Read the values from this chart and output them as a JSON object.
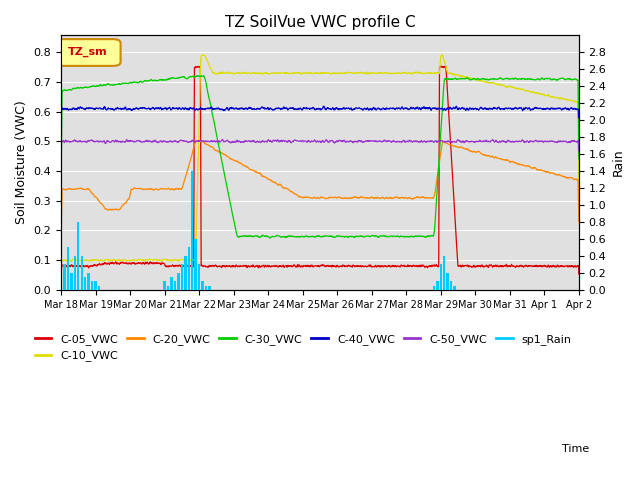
{
  "title": "TZ SoilVue VWC profile C",
  "xlabel": "Time",
  "ylabel_left": "Soil Moisture (VWC)",
  "ylabel_right": "Rain",
  "ylim_left": [
    0.0,
    0.857
  ],
  "ylim_right": [
    0.0,
    3.0
  ],
  "yticks_left": [
    0.0,
    0.1,
    0.2,
    0.3,
    0.4,
    0.5,
    0.6,
    0.7,
    0.8
  ],
  "yticks_right": [
    0.0,
    0.2,
    0.4,
    0.6,
    0.8,
    1.0,
    1.2,
    1.4,
    1.6,
    1.8,
    2.0,
    2.2,
    2.4,
    2.6,
    2.8
  ],
  "bg_color": "#e0e0e0",
  "legend_box_color": "#ffff99",
  "legend_box_edge": "#cc8800",
  "series_colors": {
    "C-05_VWC": "#dd0000",
    "C-10_VWC": "#dddd00",
    "C-20_VWC": "#ff8800",
    "C-30_VWC": "#00cc00",
    "C-40_VWC": "#0000cc",
    "C-50_VWC": "#9933cc",
    "sp1_Rain": "#00ccff"
  },
  "n_points": 2000,
  "date_start_day": 18,
  "date_end_day": 33,
  "x_tick_positions": [
    18,
    19,
    20,
    21,
    22,
    23,
    24,
    25,
    26,
    27,
    28,
    29,
    30,
    31,
    32,
    33
  ],
  "x_tick_labels": [
    "Mar 18",
    "Mar 19",
    "Mar 20",
    "Mar 21",
    "Mar 22",
    "Mar 23",
    "Mar 24",
    "Mar 25",
    "Mar 26",
    "Mar 27",
    "Mar 28",
    "Mar 29",
    "Mar 30",
    "Mar 31",
    "Apr 1",
    "Apr 2"
  ]
}
